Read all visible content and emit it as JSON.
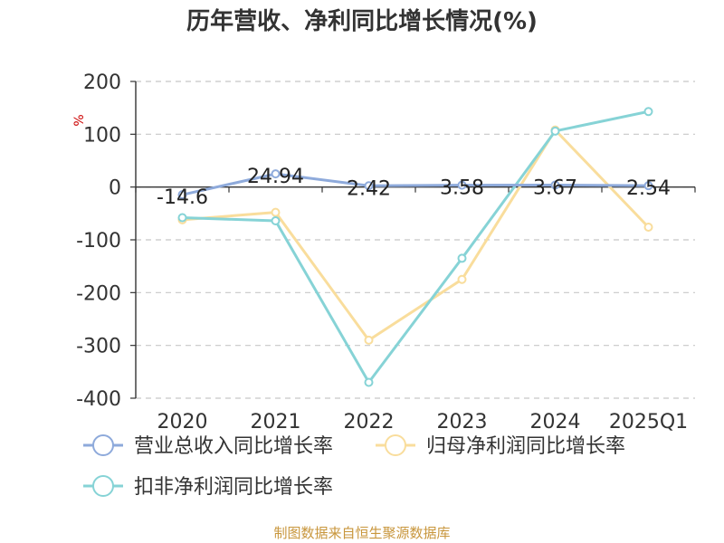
{
  "chart_data": {
    "type": "line",
    "title": "历年营收、净利同比增长情况(%)",
    "ylabel": "%",
    "categories": [
      "2020",
      "2021",
      "2022",
      "2023",
      "2024",
      "2025Q1"
    ],
    "ylim": [
      -400,
      200
    ],
    "yticks": [
      200,
      100,
      0,
      -100,
      -200,
      -300,
      -400
    ],
    "grid": true,
    "legend_position": "bottom-left",
    "series": [
      {
        "name": "营业总收入同比增长率",
        "color": "#8eaadb",
        "values": [
          -14.6,
          24.94,
          2.42,
          3.58,
          3.67,
          2.54
        ],
        "labels": [
          "-14.6",
          "24.94",
          "2.42",
          "3.58",
          "3.67",
          "2.54"
        ]
      },
      {
        "name": "归母净利润同比增长率",
        "color": "#f9dd9c",
        "values": [
          -62,
          -48,
          -290,
          -175,
          108,
          -76
        ]
      },
      {
        "name": "扣非净利润同比增长率",
        "color": "#86d3d6",
        "values": [
          -58,
          -64,
          -370,
          -135,
          106,
          143
        ]
      }
    ]
  },
  "source": "制图数据来自恒生聚源数据库"
}
